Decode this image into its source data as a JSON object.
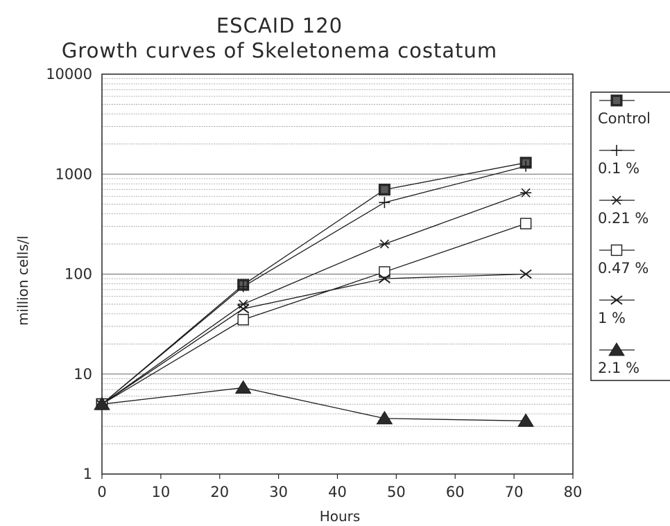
{
  "chart_data": {
    "type": "line",
    "title": "ESCAID 120",
    "subtitle": "Growth curves of Skeletonema costatum",
    "xlabel": "Hours",
    "ylabel": "million cells/l",
    "xlim": [
      0,
      80
    ],
    "ylim": [
      1,
      10000
    ],
    "y_scale": "log",
    "x_ticks": [
      0,
      10,
      20,
      30,
      40,
      50,
      60,
      70,
      80
    ],
    "y_ticks": [
      1,
      10,
      100,
      1000,
      10000
    ],
    "grid": "horizontal",
    "legend_position": "right",
    "x": [
      0,
      24,
      48,
      72
    ],
    "series": [
      {
        "name": "Control",
        "marker": "filled-square",
        "values": [
          5,
          78,
          700,
          1300
        ]
      },
      {
        "name": "0.1 %",
        "marker": "plus",
        "values": [
          5,
          75,
          520,
          1200
        ]
      },
      {
        "name": "0.21 %",
        "marker": "asterisk",
        "values": [
          5,
          50,
          200,
          650
        ]
      },
      {
        "name": "0.47 %",
        "marker": "open-square",
        "values": [
          5,
          35,
          105,
          320
        ]
      },
      {
        "name": "1 %",
        "marker": "cross",
        "values": [
          5,
          45,
          90,
          100
        ]
      },
      {
        "name": "2.1 %",
        "marker": "filled-triangle",
        "values": [
          5,
          7.3,
          3.6,
          3.4
        ]
      }
    ]
  }
}
